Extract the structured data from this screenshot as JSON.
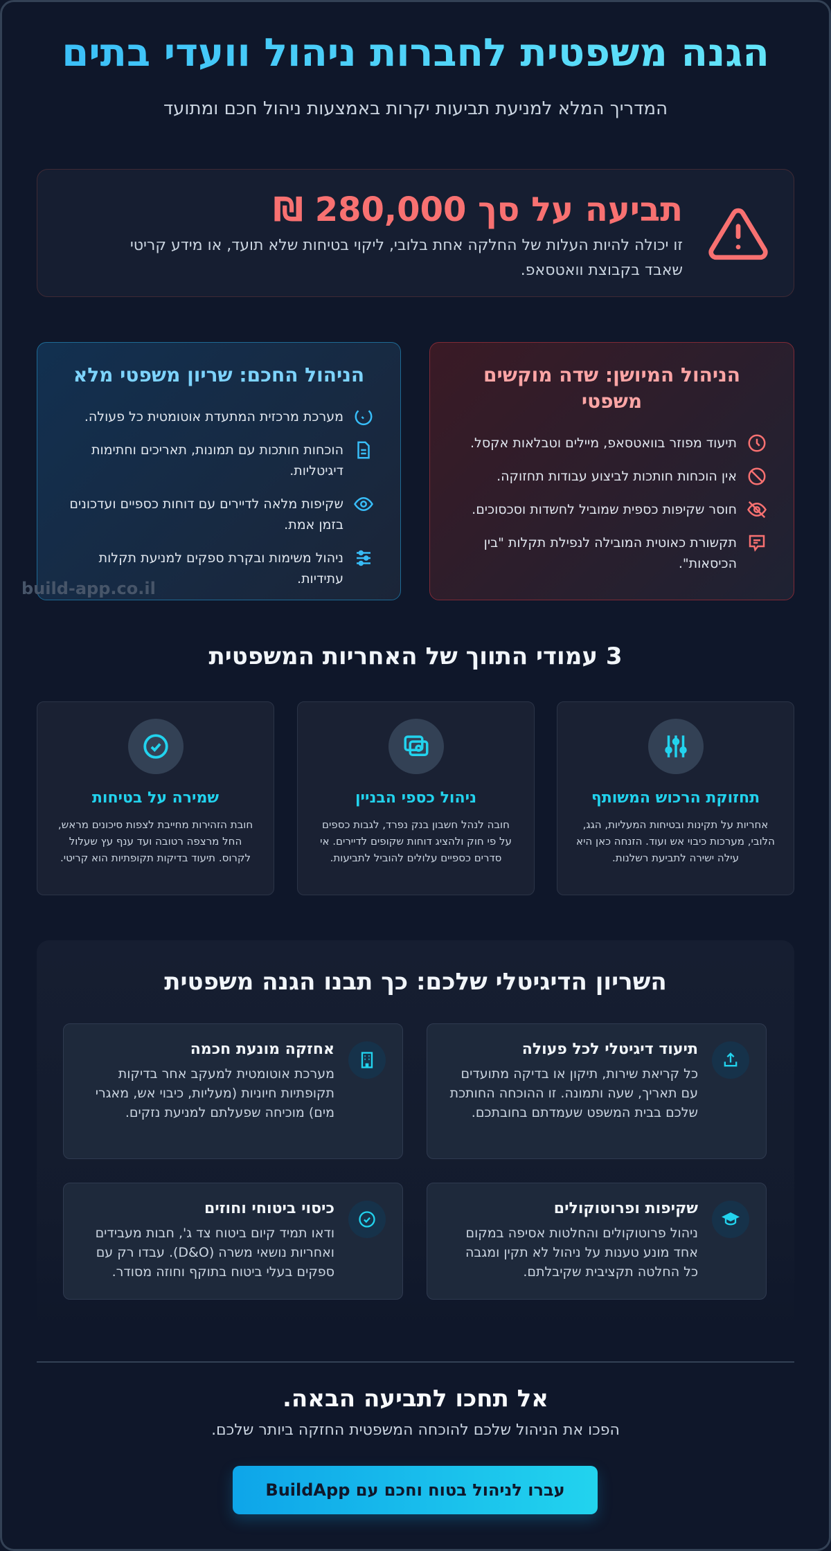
{
  "header": {
    "title": "הגנה משפטית לחברות ניהול וועדי בתים",
    "subtitle": "המדריך המלא למניעת תביעות יקרות באמצעות ניהול חכם ומתועד"
  },
  "alert": {
    "icon": "warning-triangle-icon",
    "title": "תביעה על סך 280,000 ₪",
    "text": "זו יכולה להיות העלות של החלקה אחת בלובי, ליקוי בטיחות שלא תועד, או מידע קריטי שאבד בקבוצת וואטסאפ."
  },
  "comparison": {
    "bad": {
      "title": "הניהול המיושן: שדה מוקשים משפטי",
      "items": [
        {
          "icon": "clock-icon",
          "text": "תיעוד מפוזר בוואטסאפ, מיילים וטבלאות אקסל."
        },
        {
          "icon": "ban-icon",
          "text": "אין הוכחות חותכות לביצוע עבודות תחזוקה."
        },
        {
          "icon": "eye-off-icon",
          "text": "חוסר שקיפות כספית שמוביל לחשדות וסכסוכים."
        },
        {
          "icon": "message-icon",
          "text": "תקשורת כאוטית המובילה לנפילת תקלות \"בין הכיסאות\"."
        }
      ]
    },
    "good": {
      "title": "הניהול החכם: שריון משפטי מלא",
      "items": [
        {
          "icon": "refresh-icon",
          "text": "מערכת מרכזית המתעדת אוטומטית כל פעולה."
        },
        {
          "icon": "document-icon",
          "text": "הוכחות חותכות עם תמונות, תאריכים וחתימות דיגיטליות."
        },
        {
          "icon": "eye-icon",
          "text": "שקיפות מלאה לדיירים עם דוחות כספיים ועדכונים בזמן אמת."
        },
        {
          "icon": "sliders-icon",
          "text": "ניהול משימות ובקרת ספקים למניעת תקלות עתידיות."
        }
      ]
    }
  },
  "watermark": "build-app.co.il",
  "pillars": {
    "title": "3 עמודי התווך של האחריות המשפטית",
    "items": [
      {
        "icon": "sliders-vertical-icon",
        "title": "תחזוקת הרכוש המשותף",
        "text": "אחריות על תקינות ובטיחות המעליות, הגג, הלובי, מערכות כיבוי אש ועוד. הזנחה כאן היא עילה ישירה לתביעת רשלנות."
      },
      {
        "icon": "money-icon",
        "title": "ניהול כספי הבניין",
        "text": "חובה לנהל חשבון בנק נפרד, לגבות כספים על פי חוק ולהציג דוחות שקופים לדיירים. אי סדרים כספיים עלולים להוביל לתביעות."
      },
      {
        "icon": "check-circle-icon",
        "title": "שמירה על בטיחות",
        "text": "חובת הזהירות מחייבת לצפות סיכונים מראש, החל מרצפה רטובה ועד ענף עץ שעלול לקרוס. תיעוד בדיקות תקופתיות הוא קריטי."
      }
    ]
  },
  "armor": {
    "title": "השריון הדיגיטלי שלכם: כך תבנו הגנה משפטית",
    "items": [
      {
        "icon": "upload-icon",
        "title": "תיעוד דיגיטלי לכל פעולה",
        "text": "כל קריאת שירות, תיקון או בדיקה מתועדים עם תאריך, שעה ותמונה. זו ההוכחה החותכת שלכם בבית המשפט שעמדתם בחובתכם."
      },
      {
        "icon": "building-icon",
        "title": "אחזקה מונעת חכמה",
        "text": "מערכת אוטומטית למעקב אחר בדיקות תקופתיות חיוניות (מעליות, כיבוי אש, מאגרי מים) מוכיחה שפעלתם למניעת נזקים."
      },
      {
        "icon": "graduation-cap-icon",
        "title": "שקיפות ופרוטוקולים",
        "text": "ניהול פרוטוקולים והחלטות אסיפה במקום אחד מונע טענות על ניהול לא תקין ומגבה כל החלטה תקציבית שקיבלתם."
      },
      {
        "icon": "check-circle-icon",
        "title": "כיסוי ביטוחי וחוזים",
        "text": "ודאו תמיד קיום ביטוח צד ג', חבות מעבידים ואחריות נושאי משרה (D&O). עבדו רק עם ספקים בעלי ביטוח בתוקף וחוזה מסודר."
      }
    ]
  },
  "cta": {
    "title": "אל תחכו לתביעה הבאה.",
    "subtitle": "הפכו את הניהול שלכם להוכחה המשפטית החזקה ביותר שלכם.",
    "button": "עברו לניהול בטוח וחכם עם BuildApp"
  },
  "colors": {
    "background": "#0f172a",
    "accent": "#22d3ee",
    "danger": "#f87171",
    "card": "#1e293b"
  }
}
